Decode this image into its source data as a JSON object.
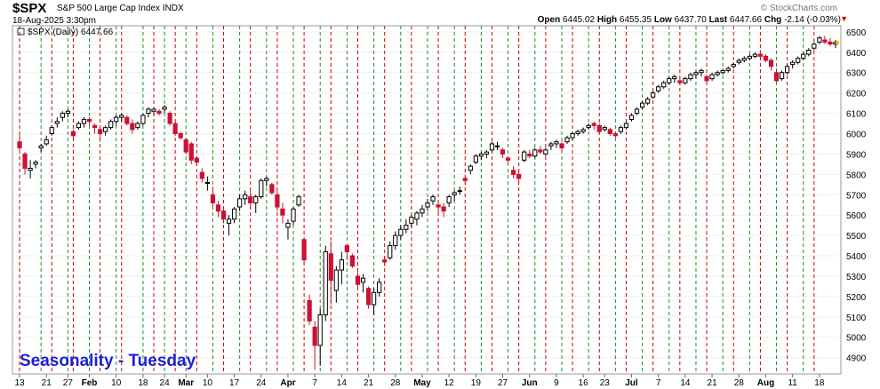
{
  "header": {
    "symbol": "$SPX",
    "description": "S&P 500 Large Cap Index",
    "exchange": "INDX",
    "datetime": "18-Aug-2025 3:30pm",
    "watermark": "© StockCharts.com",
    "open_label": "Open",
    "open": "6445.02",
    "high_label": "High",
    "high": "6455.35",
    "low_label": "Low",
    "low": "6437.70",
    "last_label": "Last",
    "last": "6447.66",
    "chg_label": "Chg",
    "chg": "-2.14 (-0.03%)"
  },
  "legend": "$SPX (Daily) 6447.66",
  "overlay_title": "Seasonality - Tuesday",
  "colors": {
    "up": "#000000",
    "down": "#cc1133",
    "green_line": "#228b22",
    "red_line": "#cc0000",
    "title": "#1f1fd6",
    "grid": "#e4e4e4"
  },
  "chart_data": {
    "type": "candlestick",
    "ylim": [
      4820,
      6530
    ],
    "y_ticks": [
      4900,
      5000,
      5100,
      5200,
      5300,
      5400,
      5500,
      5600,
      5700,
      5800,
      5900,
      6000,
      6100,
      6200,
      6300,
      6400,
      6500
    ],
    "x_tick_labels": [
      "13",
      "21",
      "27",
      "Feb",
      "10",
      "18",
      "24",
      "Mar",
      "10",
      "17",
      "24",
      "Apr",
      "7",
      "14",
      "21",
      "28",
      "May",
      "12",
      "19",
      "27",
      "Jun",
      "9",
      "16",
      "23",
      "Jul",
      "7",
      "14",
      "21",
      "28",
      "Aug",
      "11",
      "18"
    ],
    "x_tick_index": [
      0,
      5,
      9,
      13,
      18,
      23,
      27,
      31,
      35,
      40,
      45,
      50,
      55,
      60,
      65,
      70,
      75,
      80,
      85,
      90,
      95,
      100,
      105,
      109,
      114,
      119,
      124,
      129,
      134,
      139,
      144,
      149
    ],
    "green_line_indices": [
      4,
      9,
      13,
      18,
      23,
      27,
      31,
      36,
      41,
      46,
      51,
      56,
      61,
      66,
      71,
      76,
      81,
      86,
      91,
      96,
      101,
      106,
      111,
      116,
      121,
      126,
      131,
      136,
      141,
      146
    ],
    "red_line_indices": [
      0,
      6,
      10,
      15,
      19,
      25,
      29,
      33,
      38,
      43,
      48,
      53,
      58,
      63,
      68,
      73,
      78,
      83,
      88,
      93,
      98,
      103,
      108,
      113,
      118,
      123,
      128,
      133,
      138,
      143,
      148
    ],
    "candles": [
      [
        5960,
        6000,
        5910,
        5930
      ],
      [
        5900,
        5910,
        5800,
        5830
      ],
      [
        5820,
        5870,
        5780,
        5830
      ],
      [
        5850,
        5870,
        5830,
        5860
      ],
      [
        5930,
        5950,
        5910,
        5940
      ],
      [
        5950,
        5990,
        5940,
        5970
      ],
      [
        6000,
        6040,
        5990,
        6030
      ],
      [
        6050,
        6080,
        6030,
        6060
      ],
      [
        6080,
        6110,
        6060,
        6100
      ],
      [
        6100,
        6120,
        6080,
        6110
      ],
      [
        6010,
        6020,
        5980,
        5990
      ],
      [
        6030,
        6060,
        6020,
        6050
      ],
      [
        6050,
        6080,
        6030,
        6070
      ],
      [
        6070,
        6080,
        6040,
        6060
      ],
      [
        6040,
        6050,
        6000,
        6030
      ],
      [
        6020,
        6030,
        5960,
        6000
      ],
      [
        6010,
        6040,
        5990,
        6030
      ],
      [
        6030,
        6070,
        6020,
        6060
      ],
      [
        6060,
        6090,
        6040,
        6080
      ],
      [
        6080,
        6100,
        6060,
        6090
      ],
      [
        6080,
        6090,
        6040,
        6050
      ],
      [
        6050,
        6070,
        6000,
        6020
      ],
      [
        6030,
        6060,
        6020,
        6050
      ],
      [
        6050,
        6100,
        6040,
        6090
      ],
      [
        6100,
        6130,
        6080,
        6120
      ],
      [
        6110,
        6130,
        6090,
        6120
      ],
      [
        6110,
        6120,
        6090,
        6100
      ],
      [
        6120,
        6140,
        6100,
        6130
      ],
      [
        6100,
        6110,
        6040,
        6050
      ],
      [
        6050,
        6060,
        5990,
        6000
      ],
      [
        6000,
        6010,
        5970,
        5980
      ],
      [
        5970,
        5980,
        5900,
        5910
      ],
      [
        5950,
        5960,
        5850,
        5870
      ],
      [
        5880,
        5890,
        5840,
        5860
      ],
      [
        5810,
        5830,
        5760,
        5780
      ],
      [
        5760,
        5790,
        5720,
        5760
      ],
      [
        5700,
        5740,
        5640,
        5660
      ],
      [
        5650,
        5670,
        5590,
        5620
      ],
      [
        5620,
        5640,
        5560,
        5580
      ],
      [
        5560,
        5600,
        5500,
        5580
      ],
      [
        5580,
        5640,
        5560,
        5630
      ],
      [
        5640,
        5700,
        5620,
        5680
      ],
      [
        5680,
        5720,
        5650,
        5700
      ],
      [
        5690,
        5720,
        5630,
        5660
      ],
      [
        5660,
        5700,
        5610,
        5690
      ],
      [
        5690,
        5780,
        5680,
        5770
      ],
      [
        5770,
        5790,
        5740,
        5780
      ],
      [
        5750,
        5760,
        5700,
        5710
      ],
      [
        5700,
        5720,
        5620,
        5640
      ],
      [
        5630,
        5660,
        5560,
        5600
      ],
      [
        5540,
        5580,
        5480,
        5560
      ],
      [
        5570,
        5640,
        5550,
        5630
      ],
      [
        5650,
        5700,
        5640,
        5690
      ],
      [
        5480,
        5490,
        5360,
        5380
      ],
      [
        5180,
        5210,
        5060,
        5080
      ],
      [
        5050,
        5080,
        4840,
        4960
      ],
      [
        4960,
        5140,
        4860,
        5110
      ],
      [
        5110,
        5450,
        5080,
        5420
      ],
      [
        5410,
        5470,
        5160,
        5280
      ],
      [
        5230,
        5350,
        5170,
        5330
      ],
      [
        5330,
        5420,
        5260,
        5380
      ],
      [
        5450,
        5460,
        5380,
        5420
      ],
      [
        5400,
        5410,
        5340,
        5350
      ],
      [
        5300,
        5320,
        5240,
        5260
      ],
      [
        5270,
        5310,
        5220,
        5290
      ],
      [
        5240,
        5250,
        5140,
        5160
      ],
      [
        5160,
        5240,
        5110,
        5220
      ],
      [
        5220,
        5290,
        5200,
        5270
      ],
      [
        5380,
        5400,
        5350,
        5370
      ],
      [
        5390,
        5470,
        5380,
        5450
      ],
      [
        5450,
        5520,
        5430,
        5500
      ],
      [
        5500,
        5550,
        5480,
        5530
      ],
      [
        5530,
        5580,
        5510,
        5550
      ],
      [
        5560,
        5600,
        5540,
        5590
      ],
      [
        5580,
        5620,
        5550,
        5610
      ],
      [
        5610,
        5650,
        5590,
        5630
      ],
      [
        5640,
        5680,
        5620,
        5660
      ],
      [
        5670,
        5700,
        5650,
        5690
      ],
      [
        5650,
        5660,
        5610,
        5640
      ],
      [
        5640,
        5660,
        5590,
        5620
      ],
      [
        5660,
        5700,
        5640,
        5690
      ],
      [
        5700,
        5720,
        5670,
        5710
      ],
      [
        5720,
        5740,
        5700,
        5720
      ],
      [
        5780,
        5790,
        5750,
        5770
      ],
      [
        5820,
        5850,
        5800,
        5840
      ],
      [
        5860,
        5900,
        5850,
        5890
      ],
      [
        5890,
        5910,
        5870,
        5900
      ],
      [
        5900,
        5920,
        5880,
        5910
      ],
      [
        5920,
        5960,
        5910,
        5950
      ],
      [
        5940,
        5960,
        5920,
        5940
      ],
      [
        5920,
        5930,
        5880,
        5900
      ],
      [
        5880,
        5890,
        5850,
        5870
      ],
      [
        5820,
        5840,
        5780,
        5800
      ],
      [
        5800,
        5820,
        5760,
        5780
      ],
      [
        5870,
        5920,
        5860,
        5910
      ],
      [
        5900,
        5920,
        5880,
        5890
      ],
      [
        5890,
        5930,
        5880,
        5920
      ],
      [
        5920,
        5940,
        5900,
        5910
      ],
      [
        5900,
        5930,
        5890,
        5920
      ],
      [
        5940,
        5960,
        5920,
        5950
      ],
      [
        5950,
        5970,
        5930,
        5960
      ],
      [
        5950,
        5960,
        5910,
        5930
      ],
      [
        5960,
        5990,
        5950,
        5980
      ],
      [
        5980,
        6010,
        5970,
        6000
      ],
      [
        6000,
        6020,
        5990,
        6010
      ],
      [
        6010,
        6030,
        6000,
        6020
      ],
      [
        6030,
        6050,
        6020,
        6040
      ],
      [
        6050,
        6060,
        6020,
        6040
      ],
      [
        6040,
        6050,
        6000,
        6010
      ],
      [
        6020,
        6040,
        6010,
        6030
      ],
      [
        6020,
        6030,
        5990,
        6000
      ],
      [
        6000,
        6010,
        5980,
        5990
      ],
      [
        6010,
        6040,
        6000,
        6030
      ],
      [
        6030,
        6060,
        6020,
        6050
      ],
      [
        6070,
        6100,
        6060,
        6090
      ],
      [
        6100,
        6130,
        6090,
        6120
      ],
      [
        6130,
        6160,
        6120,
        6150
      ],
      [
        6150,
        6180,
        6140,
        6170
      ],
      [
        6180,
        6210,
        6170,
        6200
      ],
      [
        6210,
        6240,
        6200,
        6230
      ],
      [
        6230,
        6260,
        6220,
        6250
      ],
      [
        6250,
        6280,
        6240,
        6270
      ],
      [
        6270,
        6290,
        6250,
        6280
      ],
      [
        6260,
        6270,
        6240,
        6250
      ],
      [
        6250,
        6280,
        6240,
        6270
      ],
      [
        6270,
        6300,
        6260,
        6290
      ],
      [
        6290,
        6310,
        6270,
        6300
      ],
      [
        6300,
        6320,
        6280,
        6310
      ],
      [
        6280,
        6290,
        6240,
        6260
      ],
      [
        6270,
        6300,
        6260,
        6290
      ],
      [
        6290,
        6310,
        6280,
        6300
      ],
      [
        6300,
        6320,
        6290,
        6310
      ],
      [
        6310,
        6330,
        6300,
        6320
      ],
      [
        6330,
        6350,
        6320,
        6340
      ],
      [
        6350,
        6370,
        6340,
        6360
      ],
      [
        6360,
        6380,
        6350,
        6370
      ],
      [
        6370,
        6390,
        6360,
        6380
      ],
      [
        6380,
        6400,
        6370,
        6390
      ],
      [
        6390,
        6410,
        6370,
        6380
      ],
      [
        6380,
        6390,
        6350,
        6360
      ],
      [
        6360,
        6370,
        6310,
        6330
      ],
      [
        6300,
        6320,
        6250,
        6260
      ],
      [
        6270,
        6310,
        6260,
        6300
      ],
      [
        6300,
        6340,
        6290,
        6330
      ],
      [
        6340,
        6360,
        6320,
        6350
      ],
      [
        6350,
        6380,
        6340,
        6370
      ],
      [
        6370,
        6400,
        6360,
        6390
      ],
      [
        6390,
        6420,
        6380,
        6410
      ],
      [
        6420,
        6450,
        6410,
        6440
      ],
      [
        6450,
        6480,
        6440,
        6470
      ],
      [
        6460,
        6480,
        6440,
        6450
      ],
      [
        6450,
        6470,
        6430,
        6440
      ],
      [
        6440,
        6460,
        6420,
        6448
      ]
    ]
  }
}
